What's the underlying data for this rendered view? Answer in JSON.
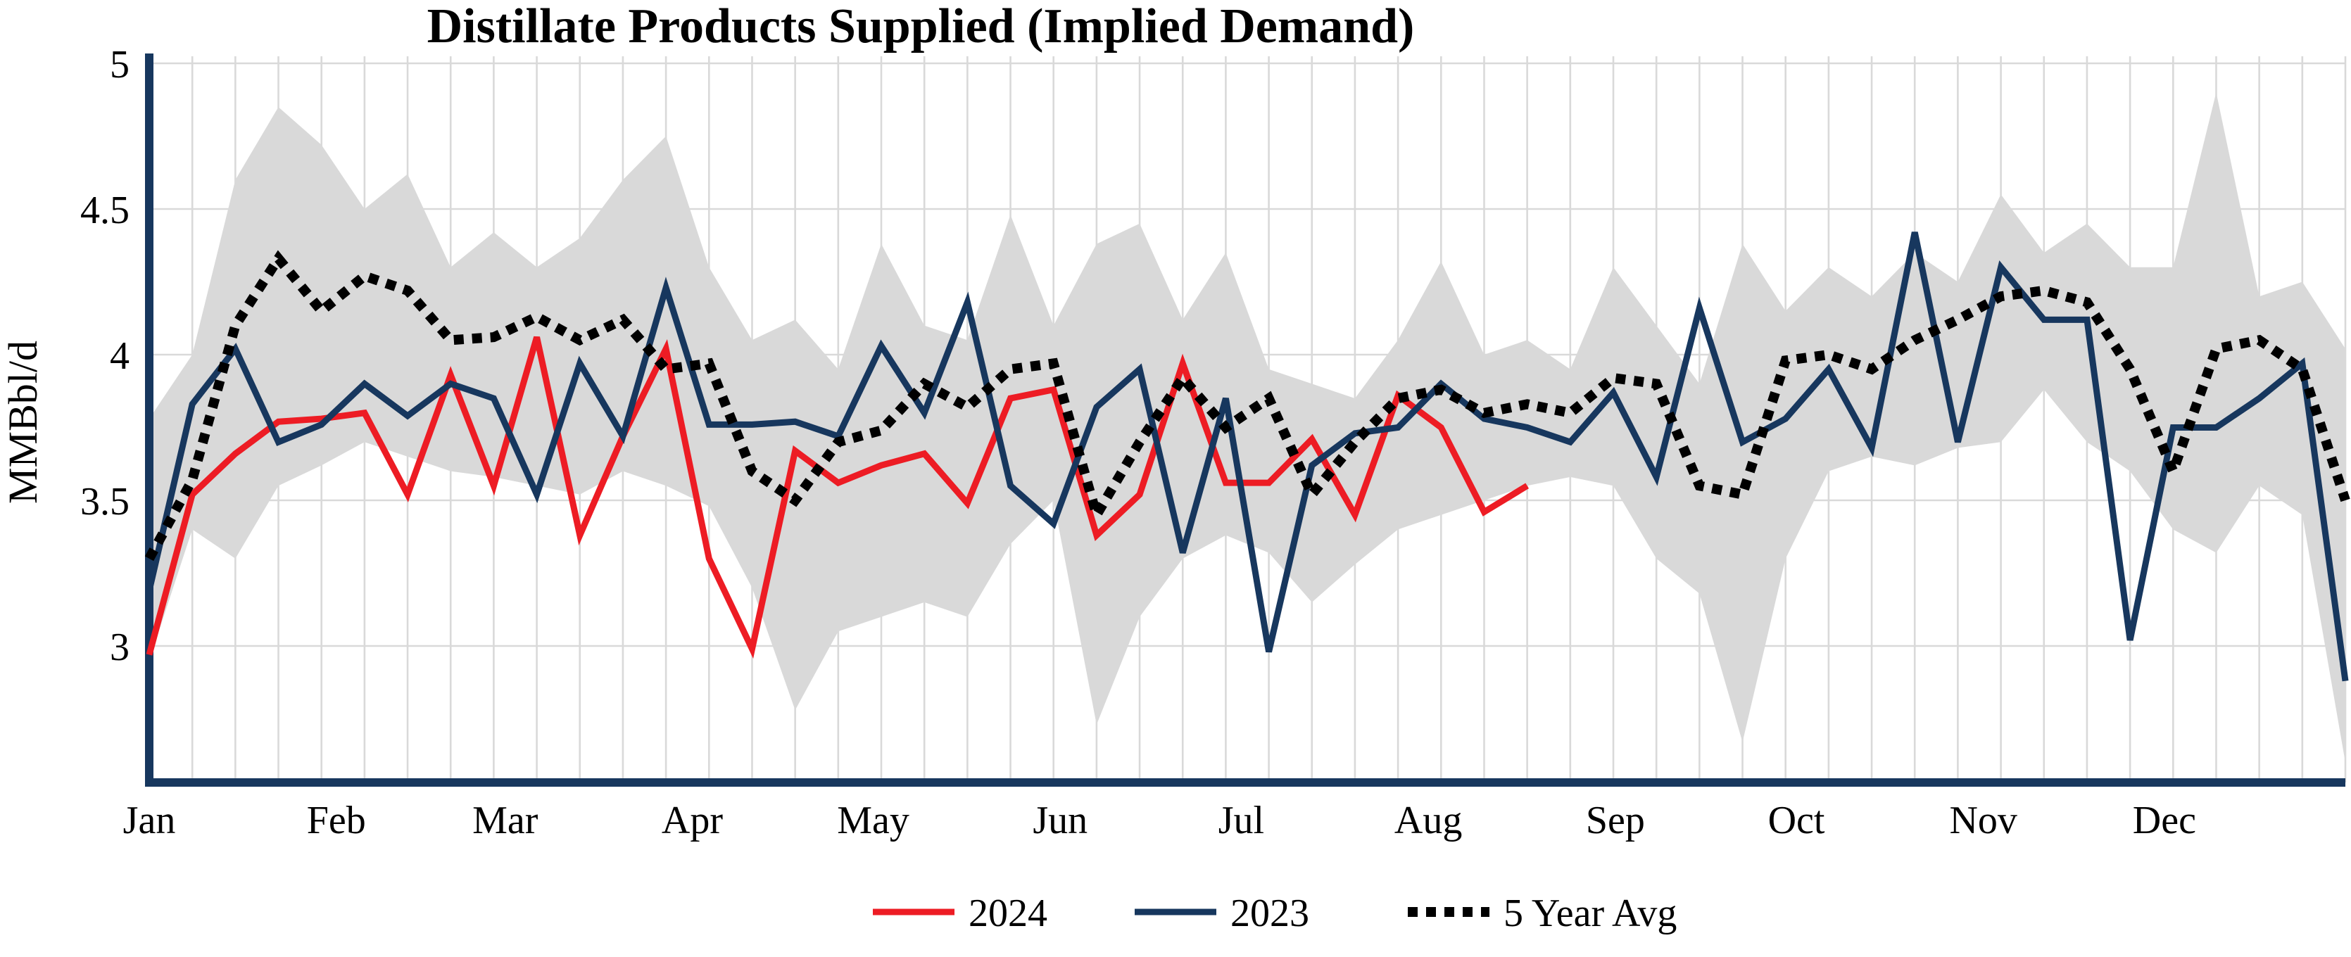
{
  "title": "Distillate Products Supplied (Implied Demand)",
  "y_axis_label": "MMBbl/d",
  "legend": [
    {
      "label": "2024",
      "color": "#ed1c24",
      "style": "solid"
    },
    {
      "label": "2023",
      "color": "#17375e",
      "style": "solid"
    },
    {
      "label": "5 Year Avg",
      "color": "#000000",
      "style": "dotted"
    }
  ],
  "chart_data": {
    "type": "line",
    "title": "Distillate Products Supplied (Implied Demand)",
    "xlabel": "",
    "ylabel": "MMBbl/d",
    "x_unit": "week",
    "weeks": 52,
    "months": [
      "Jan",
      "Feb",
      "Mar",
      "Apr",
      "May",
      "Jun",
      "Jul",
      "Aug",
      "Sep",
      "Oct",
      "Nov",
      "Dec"
    ],
    "y_ticks": [
      3,
      3.5,
      4,
      4.5,
      5
    ],
    "ylim": [
      2.53,
      5.0
    ],
    "grid": true,
    "grid_color": "#d9d9d9",
    "axis_color": "#17375e",
    "legend_position": "bottom",
    "series": [
      {
        "name": "2024",
        "color": "#ed1c24",
        "style": "solid",
        "values": [
          2.97,
          3.52,
          3.66,
          3.77,
          3.78,
          3.8,
          3.52,
          3.93,
          3.55,
          4.06,
          3.38,
          3.72,
          4.02,
          3.3,
          2.99,
          3.67,
          3.56,
          3.62,
          3.66,
          3.49,
          3.85,
          3.88,
          3.38,
          3.52,
          3.97,
          3.56,
          3.56,
          3.71,
          3.45,
          3.86,
          3.75,
          3.46,
          3.55
        ]
      },
      {
        "name": "2023",
        "color": "#17375e",
        "style": "solid",
        "values": [
          3.19,
          3.83,
          4.02,
          3.7,
          3.76,
          3.9,
          3.79,
          3.9,
          3.85,
          3.52,
          3.97,
          3.72,
          4.23,
          3.76,
          3.76,
          3.77,
          3.72,
          4.03,
          3.8,
          4.18,
          3.55,
          3.42,
          3.82,
          3.95,
          3.32,
          3.85,
          2.98,
          3.62,
          3.73,
          3.75,
          3.9,
          3.78,
          3.75,
          3.7,
          3.87,
          3.58,
          4.16,
          3.7,
          3.78,
          3.95,
          3.68,
          4.42,
          3.7,
          4.3,
          4.12,
          4.12,
          3.02,
          3.75,
          3.75,
          3.85,
          3.97,
          2.88
        ]
      },
      {
        "name": "5 Year Avg",
        "color": "#000000",
        "style": "dotted",
        "values": [
          3.3,
          3.57,
          4.1,
          4.33,
          4.15,
          4.27,
          4.22,
          4.05,
          4.06,
          4.13,
          4.05,
          4.12,
          3.95,
          3.97,
          3.6,
          3.5,
          3.7,
          3.74,
          3.9,
          3.82,
          3.95,
          3.97,
          3.45,
          3.7,
          3.92,
          3.75,
          3.85,
          3.52,
          3.7,
          3.85,
          3.88,
          3.8,
          3.83,
          3.8,
          3.92,
          3.9,
          3.55,
          3.52,
          3.98,
          4.0,
          3.95,
          4.05,
          4.12,
          4.2,
          4.22,
          4.18,
          3.95,
          3.6,
          4.02,
          4.05,
          3.95,
          3.5
        ]
      }
    ],
    "band": {
      "name": "5-year range",
      "color": "#d9d9d9",
      "upper": [
        3.78,
        4.0,
        4.6,
        4.85,
        4.72,
        4.5,
        4.62,
        4.3,
        4.42,
        4.3,
        4.4,
        4.6,
        4.75,
        4.3,
        4.05,
        4.12,
        3.95,
        4.38,
        4.1,
        4.05,
        4.48,
        4.1,
        4.38,
        4.45,
        4.12,
        4.35,
        3.95,
        3.9,
        3.85,
        4.05,
        4.32,
        4.0,
        4.05,
        3.95,
        4.3,
        4.1,
        3.9,
        4.38,
        4.15,
        4.3,
        4.2,
        4.35,
        4.25,
        4.55,
        4.35,
        4.45,
        4.3,
        4.3,
        4.9,
        4.2,
        4.25,
        4.02
      ],
      "lower": [
        2.95,
        3.4,
        3.3,
        3.55,
        3.62,
        3.7,
        3.65,
        3.6,
        3.58,
        3.55,
        3.52,
        3.6,
        3.55,
        3.48,
        3.2,
        2.78,
        3.05,
        3.1,
        3.15,
        3.1,
        3.35,
        3.5,
        2.73,
        3.1,
        3.3,
        3.38,
        3.32,
        3.15,
        3.28,
        3.4,
        3.45,
        3.5,
        3.55,
        3.58,
        3.55,
        3.3,
        3.18,
        2.67,
        3.3,
        3.6,
        3.65,
        3.62,
        3.68,
        3.7,
        3.88,
        3.7,
        3.6,
        3.4,
        3.32,
        3.55,
        3.45,
        2.6
      ]
    }
  }
}
